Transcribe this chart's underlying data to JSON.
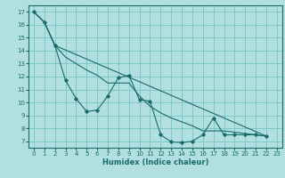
{
  "xlabel": "Humidex (Indice chaleur)",
  "ylabel": "",
  "bg_color": "#b2dfdf",
  "grid_color": "#7fc8c8",
  "line_color": "#1a6b6b",
  "xlim": [
    -0.5,
    23.5
  ],
  "ylim": [
    6.5,
    17.5
  ],
  "xticks": [
    0,
    1,
    2,
    3,
    4,
    5,
    6,
    7,
    8,
    9,
    10,
    11,
    12,
    13,
    14,
    15,
    16,
    17,
    18,
    19,
    20,
    21,
    22,
    23
  ],
  "yticks": [
    7,
    8,
    9,
    10,
    11,
    12,
    13,
    14,
    15,
    16,
    17
  ],
  "series": [
    {
      "x": [
        0,
        1,
        2,
        3,
        4,
        5,
        6,
        7,
        8,
        9,
        10,
        11,
        12,
        13,
        14,
        15,
        16,
        17,
        18,
        19,
        20,
        21,
        22
      ],
      "y": [
        17.0,
        16.2,
        14.4,
        11.7,
        10.3,
        9.3,
        9.4,
        10.5,
        11.9,
        12.1,
        10.2,
        10.1,
        7.5,
        6.95,
        6.9,
        7.0,
        7.5,
        8.8,
        7.5,
        7.5,
        7.5,
        7.5,
        7.4
      ],
      "marker": true
    },
    {
      "x": [
        0,
        1,
        2,
        22
      ],
      "y": [
        17.0,
        16.2,
        14.4,
        7.4
      ],
      "marker": false
    },
    {
      "x": [
        0,
        1,
        2,
        3,
        4,
        5,
        6,
        7,
        8,
        9,
        10,
        11,
        12,
        13,
        14,
        15,
        16,
        17,
        18,
        19,
        20,
        21,
        22
      ],
      "y": [
        17.0,
        16.2,
        14.4,
        13.5,
        13.0,
        12.5,
        12.1,
        11.5,
        11.5,
        11.5,
        10.5,
        9.7,
        9.2,
        8.8,
        8.5,
        8.2,
        7.8,
        7.8,
        7.8,
        7.7,
        7.6,
        7.5,
        7.4
      ],
      "marker": false
    }
  ]
}
